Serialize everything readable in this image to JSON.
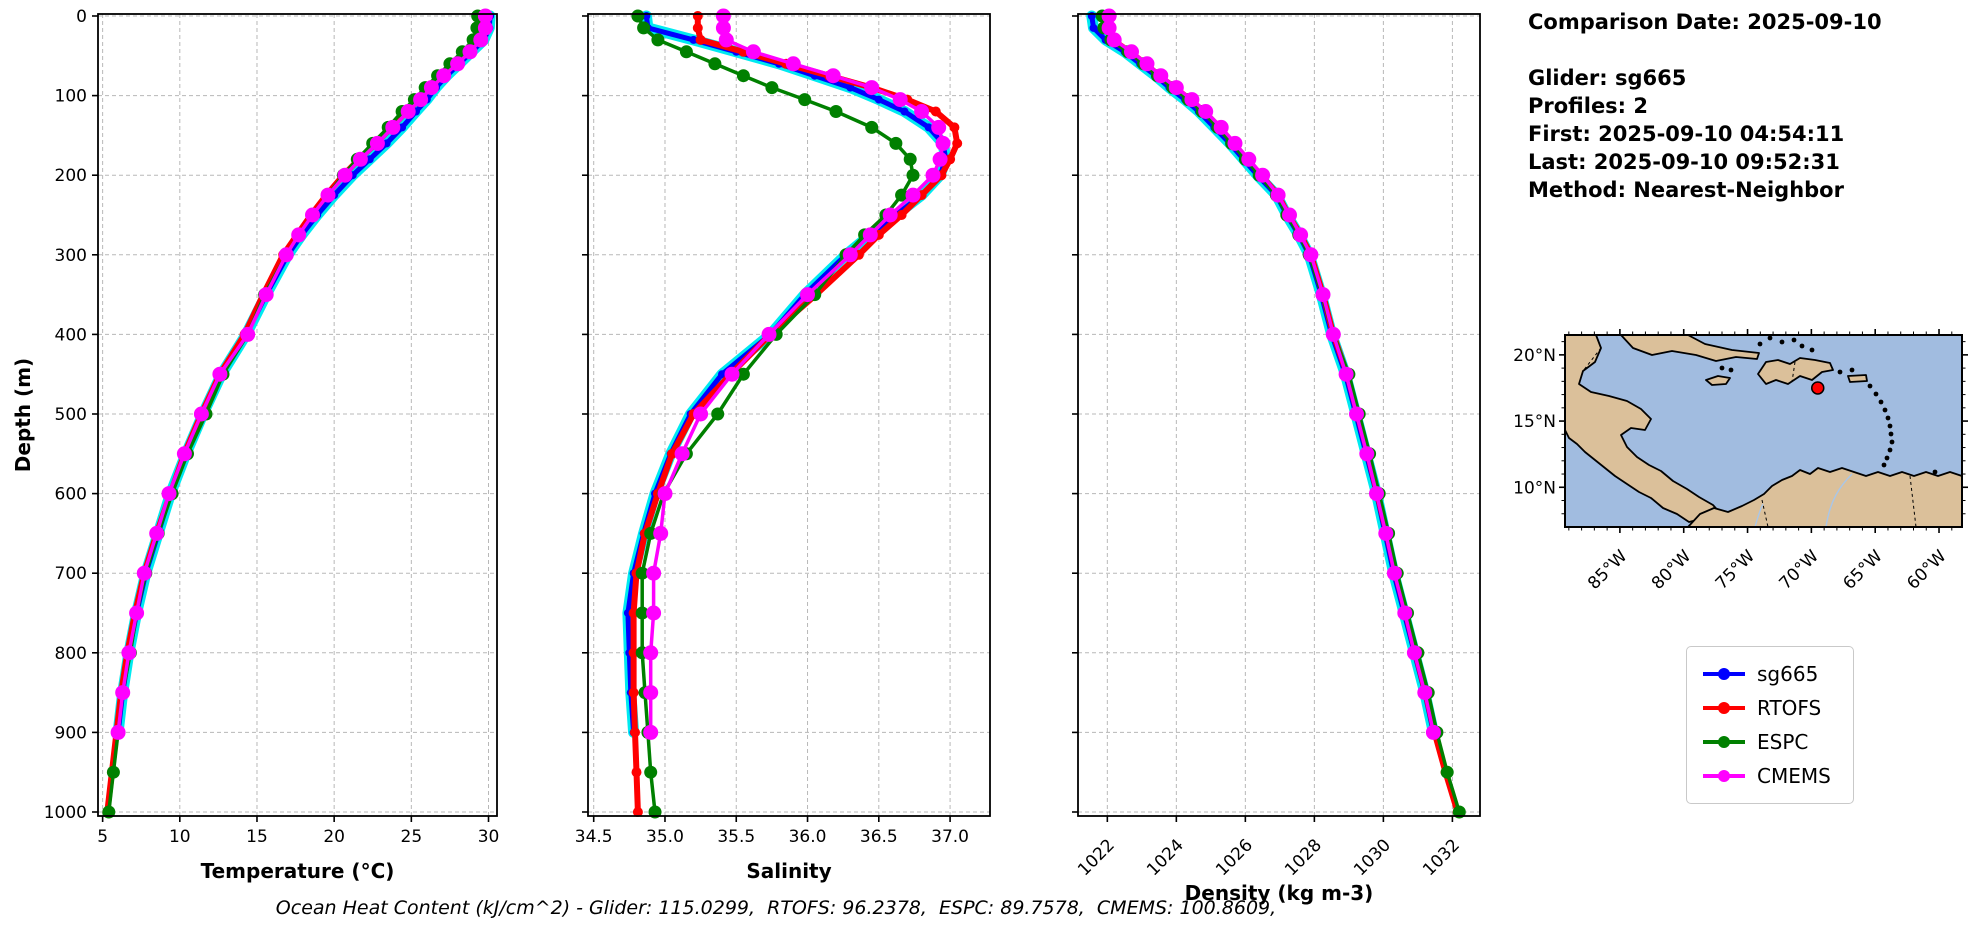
{
  "info": {
    "comparison_date": "Comparison Date: 2025-09-10",
    "glider": "Glider: sg665",
    "profiles": "Profiles: 2",
    "first": "First: 2025-09-10 04:54:11",
    "last": "Last: 2025-09-10 09:52:31",
    "method": "Method: Nearest-Neighbor"
  },
  "footer": "Ocean Heat Content (kJ/cm^2) - Glider: 115.0299,  RTOFS: 96.2378,  ESPC: 89.7578,  CMEMS: 100.8609,",
  "colors": {
    "sg665": "#0000ff",
    "rtofs": "#ff0000",
    "espc": "#008000",
    "cmems": "#ff00ff",
    "envelope": "#00eaf0",
    "grid": "#b8b8b8",
    "spine": "#000000"
  },
  "legend": {
    "entries": [
      {
        "label": "sg665",
        "color": "#0000ff"
      },
      {
        "label": "RTOFS",
        "color": "#ff0000"
      },
      {
        "label": "ESPC",
        "color": "#008000"
      },
      {
        "label": "CMEMS",
        "color": "#ff00ff"
      }
    ]
  },
  "map": {
    "land_color": "#dbc09a",
    "ocean_color": "#a1bce0",
    "coast_color": "#000000",
    "river_color": "#a9c6e8",
    "marker": {
      "lon": -69.5,
      "lat": 17.5,
      "color": "#ff0000"
    },
    "lon_ticks": [
      {
        "v": -85,
        "label": "85°W"
      },
      {
        "v": -80,
        "label": "80°W"
      },
      {
        "v": -75,
        "label": "75°W"
      },
      {
        "v": -70,
        "label": "70°W"
      },
      {
        "v": -65,
        "label": "65°W"
      },
      {
        "v": -60,
        "label": "60°W"
      }
    ],
    "lat_ticks": [
      {
        "v": 20,
        "label": "20°N"
      },
      {
        "v": 15,
        "label": "15°N"
      },
      {
        "v": 10,
        "label": "10°N"
      }
    ],
    "lon_range": [
      -89.3,
      -58.2
    ],
    "lat_range": [
      7.0,
      21.5
    ]
  },
  "chart_data": [
    {
      "type": "line",
      "xlabel": "Temperature (°C)",
      "ylabel": "Depth (m)",
      "xlim": [
        4.7,
        30.55
      ],
      "ylim": [
        0,
        1000
      ],
      "xticks": [
        5,
        10,
        15,
        20,
        25,
        30
      ],
      "xtick_labels": [
        "5",
        "10",
        "15",
        "20",
        "25",
        "30"
      ],
      "ytick_values": [
        0,
        100,
        200,
        300,
        400,
        500,
        600,
        700,
        800,
        900,
        1000
      ],
      "ytick_labels": [
        "0",
        "100",
        "200",
        "300",
        "400",
        "500",
        "600",
        "700",
        "800",
        "900",
        "1000"
      ],
      "show_ytick_labels": true,
      "rotate_xtick_labels": false,
      "grid": true,
      "envelope_on_first_series": true,
      "series": [
        {
          "name": "sg665",
          "color": "#0000ff",
          "width": 5,
          "marker_r": 4,
          "depths": [
            0,
            15,
            30,
            45,
            60,
            75,
            90,
            105,
            120,
            140,
            160,
            180,
            200,
            225,
            250,
            275,
            300,
            350,
            400,
            450,
            500,
            550,
            600,
            650,
            700,
            750,
            800,
            850,
            900
          ],
          "values": [
            30.1,
            30.05,
            29.7,
            28.9,
            28.1,
            27.3,
            26.6,
            26.0,
            25.3,
            24.4,
            23.4,
            22.3,
            21.2,
            20.0,
            18.9,
            17.9,
            17.0,
            15.6,
            14.3,
            12.7,
            11.5,
            10.4,
            9.4,
            8.6,
            7.8,
            7.2,
            6.7,
            6.3,
            6.0
          ]
        },
        {
          "name": "RTOFS",
          "color": "#ff0000",
          "width": 6,
          "marker_r": 5,
          "depths": [
            0,
            15,
            30,
            45,
            60,
            75,
            90,
            105,
            120,
            140,
            160,
            180,
            200,
            225,
            250,
            275,
            300,
            350,
            400,
            450,
            500,
            550,
            600,
            650,
            700,
            750,
            800,
            850,
            900,
            950,
            1000
          ],
          "values": [
            29.6,
            29.6,
            29.4,
            28.6,
            27.8,
            27.0,
            26.2,
            25.5,
            24.7,
            23.7,
            22.7,
            21.6,
            20.6,
            19.5,
            18.5,
            17.6,
            16.7,
            15.4,
            14.2,
            12.6,
            11.4,
            10.3,
            9.4,
            8.5,
            7.7,
            7.1,
            6.6,
            6.2,
            5.9,
            5.6,
            5.3
          ]
        },
        {
          "name": "ESPC",
          "color": "#008000",
          "width": 3.5,
          "marker_r": 6.5,
          "depths": [
            0,
            15,
            30,
            45,
            60,
            75,
            90,
            105,
            120,
            140,
            160,
            180,
            200,
            225,
            250,
            275,
            300,
            350,
            400,
            450,
            500,
            550,
            600,
            650,
            700,
            750,
            800,
            850,
            900,
            950,
            1000
          ],
          "values": [
            29.3,
            29.25,
            29.0,
            28.3,
            27.5,
            26.7,
            25.9,
            25.2,
            24.4,
            23.5,
            22.5,
            21.5,
            20.6,
            19.6,
            18.6,
            17.7,
            16.9,
            15.5,
            14.4,
            12.8,
            11.7,
            10.5,
            9.5,
            8.6,
            7.8,
            7.2,
            6.8,
            6.3,
            6.0,
            5.7,
            5.4
          ]
        },
        {
          "name": "CMEMS",
          "color": "#ff00ff",
          "width": 3.5,
          "marker_r": 7.5,
          "depths": [
            0,
            15,
            30,
            45,
            60,
            75,
            90,
            105,
            120,
            140,
            160,
            180,
            200,
            225,
            250,
            275,
            300,
            350,
            400,
            450,
            500,
            550,
            600,
            650,
            700,
            750,
            800,
            850,
            900
          ],
          "values": [
            29.8,
            29.8,
            29.5,
            28.8,
            28.0,
            27.1,
            26.3,
            25.6,
            24.8,
            23.8,
            22.8,
            21.7,
            20.7,
            19.6,
            18.6,
            17.7,
            16.9,
            15.6,
            14.4,
            12.6,
            11.4,
            10.3,
            9.3,
            8.5,
            7.7,
            7.2,
            6.7,
            6.3,
            6.0
          ]
        }
      ]
    },
    {
      "type": "line",
      "xlabel": "Salinity",
      "ylabel": "",
      "xlim": [
        34.46,
        37.28
      ],
      "ylim": [
        0,
        1000
      ],
      "xticks": [
        34.5,
        35.0,
        35.5,
        36.0,
        36.5,
        37.0
      ],
      "xtick_labels": [
        "34.5",
        "35.0",
        "35.5",
        "36.0",
        "36.5",
        "37.0"
      ],
      "ytick_values": [
        0,
        100,
        200,
        300,
        400,
        500,
        600,
        700,
        800,
        900,
        1000
      ],
      "ytick_labels": [],
      "show_ytick_labels": false,
      "rotate_xtick_labels": false,
      "grid": true,
      "envelope_on_first_series": true,
      "series": [
        {
          "name": "sg665",
          "color": "#0000ff",
          "width": 5,
          "marker_r": 4,
          "depths": [
            0,
            15,
            30,
            45,
            60,
            75,
            90,
            105,
            120,
            140,
            160,
            180,
            200,
            225,
            250,
            275,
            300,
            350,
            400,
            450,
            500,
            550,
            600,
            650,
            700,
            750,
            800,
            850,
            900
          ],
          "values": [
            34.87,
            34.88,
            35.2,
            35.5,
            35.8,
            36.05,
            36.3,
            36.5,
            36.68,
            36.85,
            36.95,
            36.97,
            36.93,
            36.8,
            36.62,
            36.44,
            36.27,
            35.98,
            35.74,
            35.4,
            35.18,
            35.04,
            34.93,
            34.85,
            34.78,
            34.74,
            34.75,
            34.76,
            34.78
          ]
        },
        {
          "name": "RTOFS",
          "color": "#ff0000",
          "width": 6,
          "marker_r": 5,
          "depths": [
            0,
            15,
            30,
            45,
            60,
            75,
            90,
            105,
            120,
            140,
            160,
            180,
            200,
            225,
            250,
            275,
            300,
            350,
            400,
            450,
            500,
            550,
            600,
            650,
            700,
            750,
            800,
            850,
            900,
            950,
            1000
          ],
          "values": [
            35.23,
            35.23,
            35.25,
            35.55,
            35.85,
            36.15,
            36.45,
            36.7,
            36.9,
            37.03,
            37.05,
            37.0,
            36.94,
            36.8,
            36.66,
            36.5,
            36.36,
            36.06,
            35.74,
            35.46,
            35.2,
            35.05,
            34.95,
            34.86,
            34.8,
            34.78,
            34.78,
            34.78,
            34.79,
            34.8,
            34.81
          ]
        },
        {
          "name": "ESPC",
          "color": "#008000",
          "width": 3.5,
          "marker_r": 6.5,
          "depths": [
            0,
            15,
            30,
            45,
            60,
            75,
            90,
            105,
            120,
            140,
            160,
            180,
            200,
            225,
            250,
            275,
            300,
            350,
            400,
            450,
            500,
            550,
            600,
            650,
            700,
            750,
            800,
            850,
            900,
            950,
            1000
          ],
          "values": [
            34.81,
            34.85,
            34.95,
            35.15,
            35.35,
            35.55,
            35.75,
            35.98,
            36.2,
            36.45,
            36.62,
            36.72,
            36.74,
            36.66,
            36.55,
            36.4,
            36.27,
            36.05,
            35.78,
            35.55,
            35.37,
            35.15,
            34.99,
            34.9,
            34.84,
            34.84,
            34.84,
            34.86,
            34.88,
            34.9,
            34.93
          ]
        },
        {
          "name": "CMEMS",
          "color": "#ff00ff",
          "width": 3.5,
          "marker_r": 7.5,
          "depths": [
            0,
            15,
            30,
            45,
            60,
            75,
            90,
            105,
            120,
            140,
            160,
            180,
            200,
            225,
            250,
            275,
            300,
            350,
            400,
            450,
            500,
            550,
            600,
            650,
            700,
            750,
            800,
            850,
            900
          ],
          "values": [
            35.41,
            35.41,
            35.43,
            35.62,
            35.9,
            36.18,
            36.45,
            36.65,
            36.8,
            36.92,
            36.95,
            36.93,
            36.88,
            36.74,
            36.58,
            36.44,
            36.3,
            36.0,
            35.73,
            35.47,
            35.25,
            35.12,
            35.0,
            34.97,
            34.92,
            34.92,
            34.9,
            34.9,
            34.9
          ]
        }
      ]
    },
    {
      "type": "line",
      "xlabel": "Density (kg m-3)",
      "ylabel": "",
      "xlim": [
        1021.15,
        1032.8
      ],
      "ylim": [
        0,
        1000
      ],
      "xticks": [
        1022,
        1024,
        1026,
        1028,
        1030,
        1032
      ],
      "xtick_labels": [
        "1022",
        "1024",
        "1026",
        "1028",
        "1030",
        "1032"
      ],
      "ytick_values": [
        0,
        100,
        200,
        300,
        400,
        500,
        600,
        700,
        800,
        900,
        1000
      ],
      "ytick_labels": [],
      "show_ytick_labels": false,
      "rotate_xtick_labels": true,
      "grid": true,
      "envelope_on_first_series": true,
      "series": [
        {
          "name": "sg665",
          "color": "#0000ff",
          "width": 5,
          "marker_r": 4,
          "depths": [
            0,
            15,
            30,
            45,
            60,
            75,
            90,
            105,
            120,
            140,
            160,
            180,
            200,
            225,
            250,
            275,
            300,
            350,
            400,
            450,
            500,
            550,
            600,
            650,
            700,
            750,
            800,
            850,
            900
          ],
          "values": [
            1021.55,
            1021.6,
            1021.95,
            1022.5,
            1022.95,
            1023.4,
            1023.8,
            1024.25,
            1024.65,
            1025.1,
            1025.55,
            1025.95,
            1026.35,
            1026.9,
            1027.2,
            1027.55,
            1027.85,
            1028.2,
            1028.5,
            1028.9,
            1029.2,
            1029.5,
            1029.8,
            1030.05,
            1030.3,
            1030.6,
            1030.9,
            1031.2,
            1031.45
          ]
        },
        {
          "name": "RTOFS",
          "color": "#ff0000",
          "width": 6,
          "marker_r": 5,
          "depths": [
            0,
            15,
            30,
            45,
            60,
            75,
            90,
            105,
            120,
            140,
            160,
            180,
            200,
            225,
            250,
            275,
            300,
            350,
            400,
            450,
            500,
            550,
            600,
            650,
            700,
            750,
            800,
            850,
            900,
            950,
            1000
          ],
          "values": [
            1021.95,
            1021.95,
            1022.15,
            1022.65,
            1023.1,
            1023.5,
            1023.95,
            1024.4,
            1024.8,
            1025.25,
            1025.65,
            1026.05,
            1026.45,
            1026.95,
            1027.25,
            1027.6,
            1027.9,
            1028.25,
            1028.55,
            1028.95,
            1029.25,
            1029.55,
            1029.82,
            1030.1,
            1030.35,
            1030.65,
            1030.93,
            1031.22,
            1031.48,
            1031.8,
            1032.15
          ]
        },
        {
          "name": "ESPC",
          "color": "#008000",
          "width": 3.5,
          "marker_r": 6.5,
          "depths": [
            0,
            15,
            30,
            45,
            60,
            75,
            90,
            105,
            120,
            140,
            160,
            180,
            200,
            225,
            250,
            275,
            300,
            350,
            400,
            450,
            500,
            550,
            600,
            650,
            700,
            750,
            800,
            850,
            900,
            950,
            1000
          ],
          "values": [
            1021.85,
            1021.9,
            1022.1,
            1022.6,
            1023.05,
            1023.45,
            1023.9,
            1024.35,
            1024.75,
            1025.2,
            1025.6,
            1026.0,
            1026.4,
            1026.9,
            1027.2,
            1027.55,
            1027.85,
            1028.22,
            1028.55,
            1029.0,
            1029.3,
            1029.6,
            1029.88,
            1030.15,
            1030.4,
            1030.7,
            1031.0,
            1031.3,
            1031.55,
            1031.85,
            1032.2
          ]
        },
        {
          "name": "CMEMS",
          "color": "#ff00ff",
          "width": 3.5,
          "marker_r": 7.5,
          "depths": [
            0,
            15,
            30,
            45,
            60,
            75,
            90,
            105,
            120,
            140,
            160,
            180,
            200,
            225,
            250,
            275,
            300,
            350,
            400,
            450,
            500,
            550,
            600,
            650,
            700,
            750,
            800,
            850,
            900
          ],
          "values": [
            1022.05,
            1022.05,
            1022.2,
            1022.7,
            1023.15,
            1023.55,
            1024.0,
            1024.45,
            1024.85,
            1025.3,
            1025.7,
            1026.1,
            1026.5,
            1026.95,
            1027.28,
            1027.6,
            1027.9,
            1028.25,
            1028.55,
            1028.92,
            1029.22,
            1029.52,
            1029.8,
            1030.07,
            1030.32,
            1030.62,
            1030.9,
            1031.2,
            1031.45
          ]
        }
      ]
    }
  ]
}
